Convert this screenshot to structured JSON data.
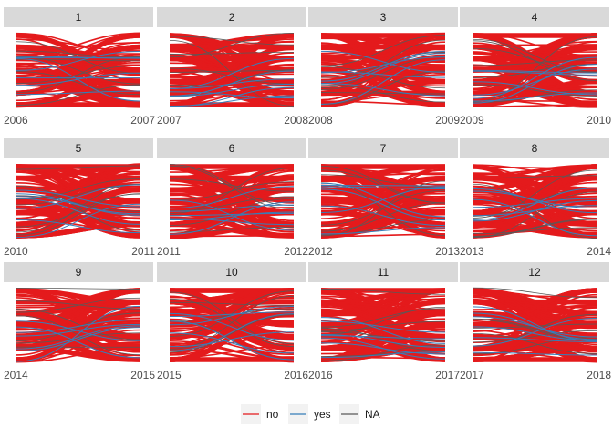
{
  "chart_data": {
    "type": "line",
    "facet_type": "alluvial-style panels of links between two years",
    "panels": [
      {
        "label": "1",
        "x": [
          "2006",
          "2007"
        ]
      },
      {
        "label": "2",
        "x": [
          "2007",
          "2008"
        ]
      },
      {
        "label": "3",
        "x": [
          "2008",
          "2009"
        ]
      },
      {
        "label": "4",
        "x": [
          "2009",
          "2010"
        ]
      },
      {
        "label": "5",
        "x": [
          "2010",
          "2011"
        ]
      },
      {
        "label": "6",
        "x": [
          "2011",
          "2012"
        ]
      },
      {
        "label": "7",
        "x": [
          "2012",
          "2013"
        ]
      },
      {
        "label": "8",
        "x": [
          "2013",
          "2014"
        ]
      },
      {
        "label": "9",
        "x": [
          "2014",
          "2015"
        ]
      },
      {
        "label": "10",
        "x": [
          "2015",
          "2016"
        ]
      },
      {
        "label": "11",
        "x": [
          "2016",
          "2017"
        ]
      },
      {
        "label": "12",
        "x": [
          "2017",
          "2018"
        ]
      }
    ],
    "series": [
      {
        "name": "no",
        "color": "#E41A1C"
      },
      {
        "name": "yes",
        "color": "#377EB8"
      },
      {
        "name": "NA",
        "color": "#595959"
      }
    ],
    "legend": "bottom",
    "grid": false
  }
}
